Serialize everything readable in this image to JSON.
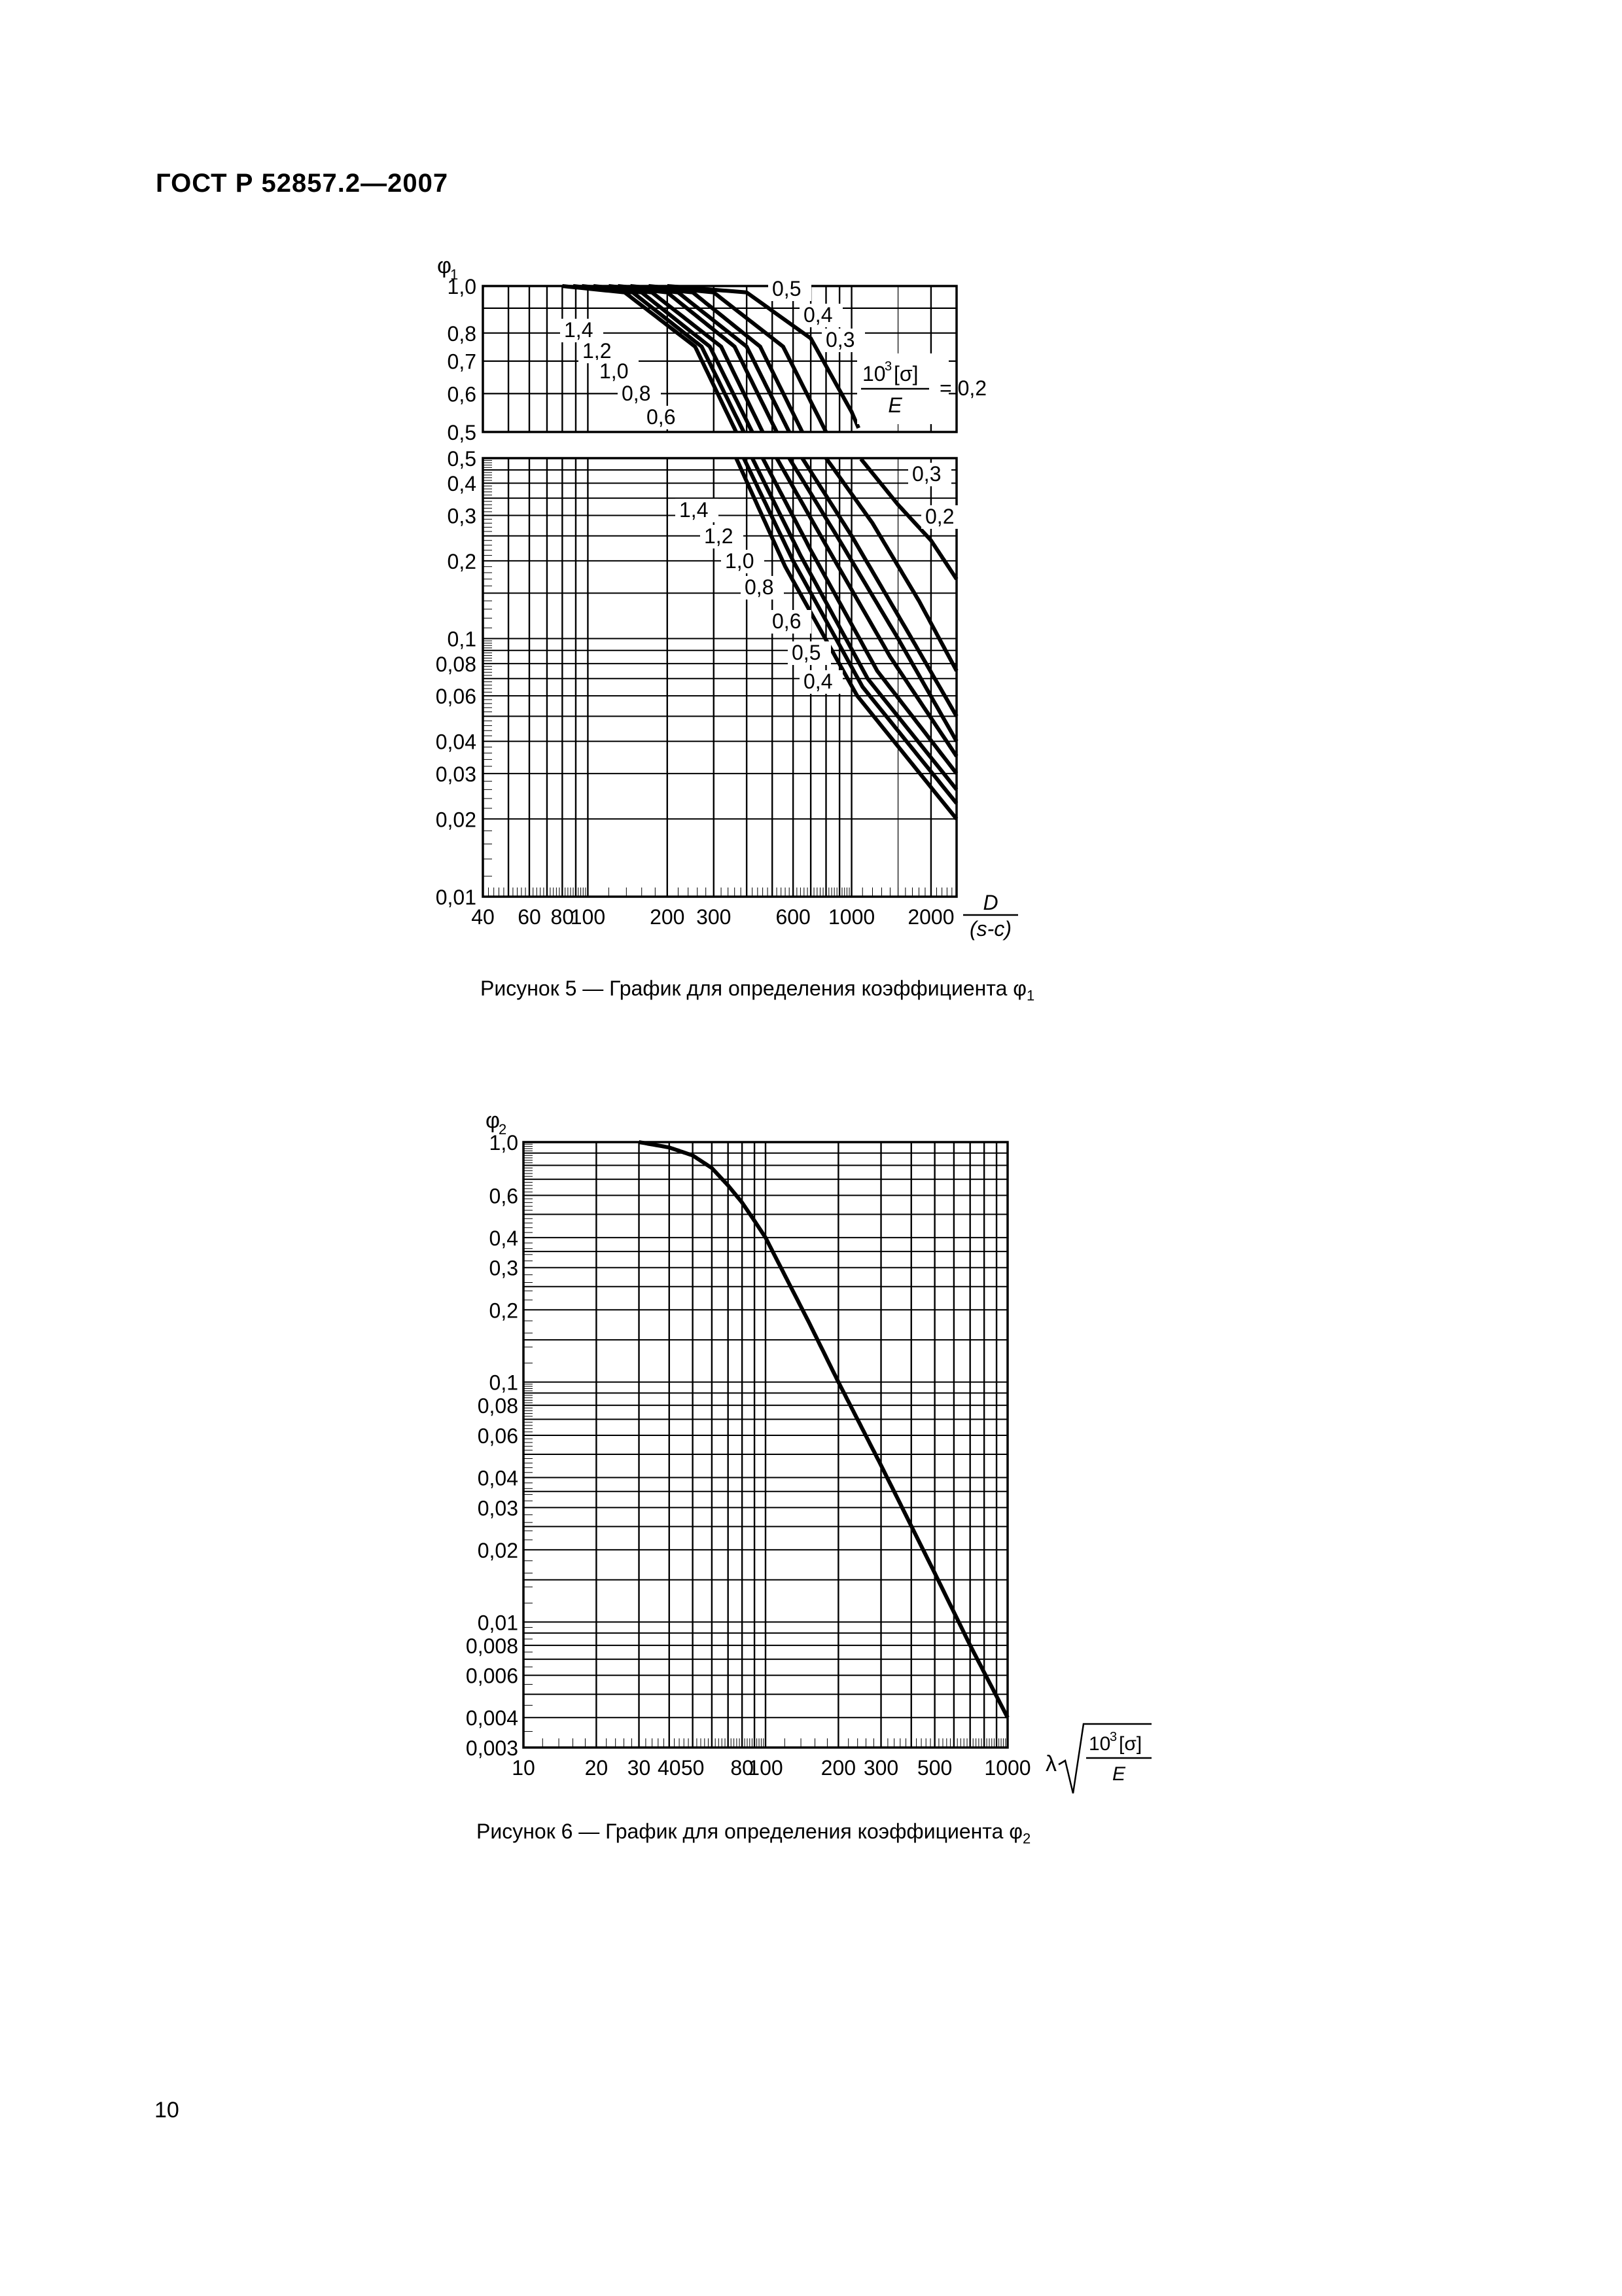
{
  "header": {
    "title": "ГОСТ Р 52857.2—2007"
  },
  "figure5": {
    "caption": "Рисунок 5 — График для определения коэффициента φ",
    "caption_sub": "1",
    "ylabel": "φ",
    "ylabel_sub": "1",
    "xlabel_num": "D",
    "xlabel_den": "(s-c)",
    "param_num": "10",
    "param_sup": "3",
    "param_num_rest": "[σ]",
    "param_den": "E",
    "param_eq": "= 0,2",
    "upper_yticks": [
      "1,0",
      "0,8",
      "0,7",
      "0,6",
      "0,5"
    ],
    "lower_yticks": [
      "0,5",
      "0,4",
      "0,3",
      "0,2",
      "0,1",
      "0,08",
      "0,06",
      "0,04",
      "0,03",
      "0,02",
      "0,01"
    ],
    "xticks": [
      "40",
      "60",
      "80",
      "100",
      "200",
      "300",
      "600",
      "1000",
      "2000"
    ],
    "upper_curve_labels": [
      "0,5",
      "0,4",
      "0,3",
      "1,4",
      "1,2",
      "1,0",
      "0,8",
      "0,6"
    ],
    "lower_curve_labels": [
      "0,3",
      "0,2",
      "1,4",
      "1,2",
      "1,0",
      "0,8",
      "0,6",
      "0,5",
      "0,4"
    ]
  },
  "figure6": {
    "caption": "Рисунок 6 — График для определения коэффициента φ",
    "caption_sub": "2",
    "ylabel": "φ",
    "ylabel_sub": "2",
    "xlabel_prefix": "λ",
    "xlabel_num": "10",
    "xlabel_sup": "3",
    "xlabel_num_rest": "[σ]",
    "xlabel_den": "E",
    "yticks": [
      "1,0",
      "0,6",
      "0,4",
      "0,3",
      "0,2",
      "0,1",
      "0,08",
      "0,06",
      "0,04",
      "0,03",
      "0,02",
      "0,01",
      "0,008",
      "0,006",
      "0,004",
      "0,003"
    ],
    "xticks": [
      "10",
      "20",
      "30",
      "40",
      "50",
      "80",
      "100",
      "200",
      "300",
      "500",
      "1000"
    ]
  },
  "page_number": "10",
  "chart_data": [
    {
      "type": "line",
      "title": "",
      "xlabel": "D/(s-c)",
      "ylabel": "φ1",
      "xscale": "log",
      "yscale": "log",
      "xlim": [
        40,
        2500
      ],
      "ylim": [
        0.01,
        1.0
      ],
      "grid": true,
      "series": [
        {
          "name": "0,2",
          "x": [
            200,
            400,
            700,
            1000,
            1500,
            2000,
            2500
          ],
          "y": [
            1.0,
            0.97,
            0.78,
            0.55,
            0.33,
            0.24,
            0.17
          ]
        },
        {
          "name": "0,3",
          "x": [
            170,
            300,
            550,
            800,
            1200,
            1800,
            2500
          ],
          "y": [
            1.0,
            0.97,
            0.75,
            0.5,
            0.28,
            0.14,
            0.075
          ]
        },
        {
          "name": "0,4",
          "x": [
            145,
            250,
            450,
            650,
            1000,
            1600,
            2500
          ],
          "y": [
            1.0,
            0.97,
            0.75,
            0.5,
            0.25,
            0.11,
            0.05
          ]
        },
        {
          "name": "0,5",
          "x": [
            130,
            220,
            400,
            580,
            900,
            1500,
            2500
          ],
          "y": [
            1.0,
            0.97,
            0.75,
            0.5,
            0.24,
            0.1,
            0.04
          ]
        },
        {
          "name": "0,6",
          "x": [
            120,
            200,
            360,
            520,
            800,
            1400,
            2500
          ],
          "y": [
            1.0,
            0.97,
            0.75,
            0.5,
            0.23,
            0.085,
            0.035
          ]
        },
        {
          "name": "0,8",
          "x": [
            105,
            175,
            320,
            460,
            700,
            1250,
            2500
          ],
          "y": [
            1.0,
            0.97,
            0.75,
            0.5,
            0.22,
            0.075,
            0.03
          ]
        },
        {
          "name": "1,0",
          "x": [
            95,
            160,
            290,
            420,
            640,
            1150,
            2500
          ],
          "y": [
            1.0,
            0.97,
            0.75,
            0.5,
            0.21,
            0.07,
            0.026
          ]
        },
        {
          "name": "1,2",
          "x": [
            88,
            148,
            270,
            390,
            600,
            1100,
            2500
          ],
          "y": [
            1.0,
            0.97,
            0.75,
            0.5,
            0.2,
            0.065,
            0.023
          ]
        },
        {
          "name": "1,4",
          "x": [
            80,
            138,
            255,
            365,
            560,
            1050,
            2500
          ],
          "y": [
            1.0,
            0.97,
            0.75,
            0.5,
            0.19,
            0.06,
            0.02
          ]
        }
      ]
    },
    {
      "type": "line",
      "title": "",
      "xlabel": "λ√(10³[σ]/E)",
      "ylabel": "φ2",
      "xscale": "log",
      "yscale": "log",
      "xlim": [
        10,
        1000
      ],
      "ylim": [
        0.003,
        1.0
      ],
      "grid": true,
      "series": [
        {
          "name": "",
          "x": [
            30,
            40,
            50,
            60,
            70,
            80,
            90,
            100,
            150,
            200,
            300,
            500,
            700,
            1000
          ],
          "y": [
            1.0,
            0.95,
            0.88,
            0.78,
            0.66,
            0.56,
            0.47,
            0.4,
            0.18,
            0.1,
            0.045,
            0.016,
            0.008,
            0.004
          ]
        }
      ]
    }
  ]
}
